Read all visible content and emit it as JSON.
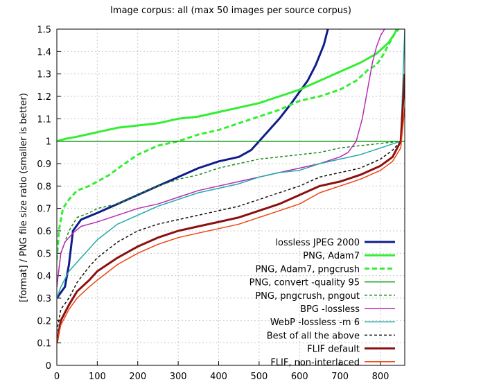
{
  "chart_data": {
    "type": "line",
    "title": "Image corpus: all (max 50 images per source corpus)",
    "xlabel": "",
    "ylabel": "[format] / PNG file size ratio (smaller is better)",
    "xlim": [
      0,
      860
    ],
    "ylim": [
      0,
      1.5
    ],
    "grid": true,
    "legend_position": "bottom-right",
    "x_ticks": [
      "0",
      "100",
      "200",
      "300",
      "400",
      "500",
      "600",
      "700",
      "800"
    ],
    "y_ticks": [
      "0",
      "0.1",
      "0.2",
      "0.3",
      "0.4",
      "0.5",
      "0.6",
      "0.7",
      "0.8",
      "0.9",
      "1",
      "1.1",
      "1.2",
      "1.3",
      "1.4",
      "1.5"
    ],
    "series": [
      {
        "name": "lossless JPEG 2000",
        "color": "#0f1d8a",
        "dash": "solid",
        "width": 3,
        "x": [
          0,
          20,
          30,
          40,
          60,
          100,
          150,
          200,
          250,
          300,
          350,
          400,
          450,
          480,
          500,
          520,
          550,
          580,
          600,
          620,
          640,
          660,
          670
        ],
        "y": [
          0.3,
          0.35,
          0.45,
          0.6,
          0.65,
          0.68,
          0.72,
          0.76,
          0.8,
          0.84,
          0.88,
          0.91,
          0.93,
          0.96,
          1.0,
          1.04,
          1.1,
          1.17,
          1.22,
          1.27,
          1.34,
          1.43,
          1.5
        ]
      },
      {
        "name": "PNG, Adam7",
        "color": "#33ee33",
        "dash": "solid",
        "width": 3,
        "x": [
          0,
          20,
          50,
          100,
          150,
          200,
          250,
          300,
          350,
          400,
          450,
          500,
          550,
          600,
          650,
          700,
          750,
          790,
          820,
          835,
          840
        ],
        "y": [
          1.0,
          1.01,
          1.02,
          1.04,
          1.06,
          1.07,
          1.08,
          1.1,
          1.11,
          1.13,
          1.15,
          1.17,
          1.2,
          1.23,
          1.27,
          1.31,
          1.35,
          1.39,
          1.44,
          1.48,
          1.5
        ]
      },
      {
        "name": "PNG, Adam7, pngcrush",
        "color": "#33ee33",
        "dash": "dashed",
        "width": 3,
        "x": [
          0,
          5,
          15,
          30,
          50,
          80,
          100,
          130,
          160,
          200,
          250,
          300,
          350,
          400,
          450,
          500,
          550,
          600,
          650,
          700,
          740,
          770,
          790,
          805,
          820,
          835,
          845
        ],
        "y": [
          0.47,
          0.6,
          0.7,
          0.74,
          0.78,
          0.8,
          0.82,
          0.85,
          0.89,
          0.94,
          0.98,
          1.0,
          1.03,
          1.05,
          1.08,
          1.11,
          1.14,
          1.18,
          1.2,
          1.23,
          1.27,
          1.32,
          1.34,
          1.38,
          1.43,
          1.48,
          1.5
        ]
      },
      {
        "name": "PNG, convert -quality 95",
        "color": "#0c9a0c",
        "dash": "solid",
        "width": 1.5,
        "x": [
          0,
          860
        ],
        "y": [
          1.0,
          1.0
        ]
      },
      {
        "name": "PNG, pngcrush, pngout",
        "color": "#1a8a1a",
        "dash": "dashed",
        "width": 1.5,
        "x": [
          0,
          10,
          30,
          50,
          80,
          100,
          150,
          200,
          250,
          300,
          350,
          400,
          450,
          500,
          550,
          600,
          650,
          700,
          750,
          800,
          850
        ],
        "y": [
          0.35,
          0.5,
          0.6,
          0.66,
          0.68,
          0.7,
          0.72,
          0.76,
          0.8,
          0.83,
          0.85,
          0.88,
          0.9,
          0.92,
          0.93,
          0.94,
          0.95,
          0.97,
          0.98,
          0.99,
          1.0
        ]
      },
      {
        "name": "BPG -lossless",
        "color": "#b52bb5",
        "dash": "solid",
        "width": 1.5,
        "x": [
          0,
          10,
          20,
          40,
          60,
          100,
          150,
          200,
          250,
          300,
          350,
          400,
          450,
          500,
          550,
          600,
          650,
          700,
          720,
          740,
          755,
          770,
          780,
          790,
          800,
          810
        ],
        "y": [
          0.35,
          0.5,
          0.55,
          0.59,
          0.62,
          0.64,
          0.67,
          0.7,
          0.72,
          0.75,
          0.78,
          0.8,
          0.82,
          0.84,
          0.86,
          0.88,
          0.9,
          0.93,
          0.95,
          1.0,
          1.1,
          1.25,
          1.35,
          1.42,
          1.47,
          1.5
        ]
      },
      {
        "name": "WebP -lossless -m 6",
        "color": "#22aaaa",
        "dash": "solid",
        "width": 1.5,
        "x": [
          0,
          10,
          30,
          50,
          80,
          100,
          150,
          200,
          250,
          300,
          350,
          400,
          450,
          500,
          550,
          600,
          650,
          700,
          750,
          800,
          850,
          860
        ],
        "y": [
          0.3,
          0.35,
          0.42,
          0.46,
          0.52,
          0.56,
          0.63,
          0.67,
          0.71,
          0.74,
          0.77,
          0.79,
          0.81,
          0.84,
          0.86,
          0.87,
          0.9,
          0.92,
          0.94,
          0.97,
          1.0,
          1.5
        ]
      },
      {
        "name": "Best of all the above",
        "color": "#111111",
        "dash": "dashed",
        "width": 1.5,
        "x": [
          0,
          10,
          30,
          50,
          80,
          100,
          150,
          200,
          250,
          300,
          350,
          400,
          450,
          500,
          550,
          600,
          650,
          700,
          750,
          800,
          830,
          850
        ],
        "y": [
          0.15,
          0.25,
          0.3,
          0.37,
          0.44,
          0.48,
          0.55,
          0.6,
          0.63,
          0.65,
          0.67,
          0.69,
          0.71,
          0.74,
          0.77,
          0.8,
          0.84,
          0.86,
          0.88,
          0.92,
          0.96,
          1.0
        ]
      },
      {
        "name": "FLIF default",
        "color": "#8b1010",
        "dash": "solid",
        "width": 3,
        "x": [
          0,
          10,
          30,
          50,
          80,
          100,
          150,
          200,
          250,
          300,
          350,
          400,
          450,
          500,
          550,
          600,
          650,
          700,
          750,
          800,
          830,
          850,
          860
        ],
        "y": [
          0.1,
          0.2,
          0.27,
          0.33,
          0.38,
          0.42,
          0.48,
          0.53,
          0.57,
          0.6,
          0.62,
          0.64,
          0.66,
          0.69,
          0.72,
          0.76,
          0.8,
          0.82,
          0.85,
          0.89,
          0.93,
          1.0,
          1.3
        ]
      },
      {
        "name": "FLIF, non-interlaced",
        "color": "#ee4411",
        "dash": "solid",
        "width": 1.5,
        "x": [
          0,
          10,
          30,
          50,
          80,
          100,
          150,
          200,
          250,
          300,
          350,
          400,
          450,
          500,
          550,
          600,
          650,
          700,
          750,
          800,
          830,
          850,
          860
        ],
        "y": [
          0.1,
          0.18,
          0.25,
          0.3,
          0.35,
          0.38,
          0.45,
          0.5,
          0.54,
          0.57,
          0.59,
          0.61,
          0.63,
          0.66,
          0.69,
          0.72,
          0.77,
          0.8,
          0.83,
          0.87,
          0.91,
          0.97,
          1.15
        ]
      }
    ]
  }
}
